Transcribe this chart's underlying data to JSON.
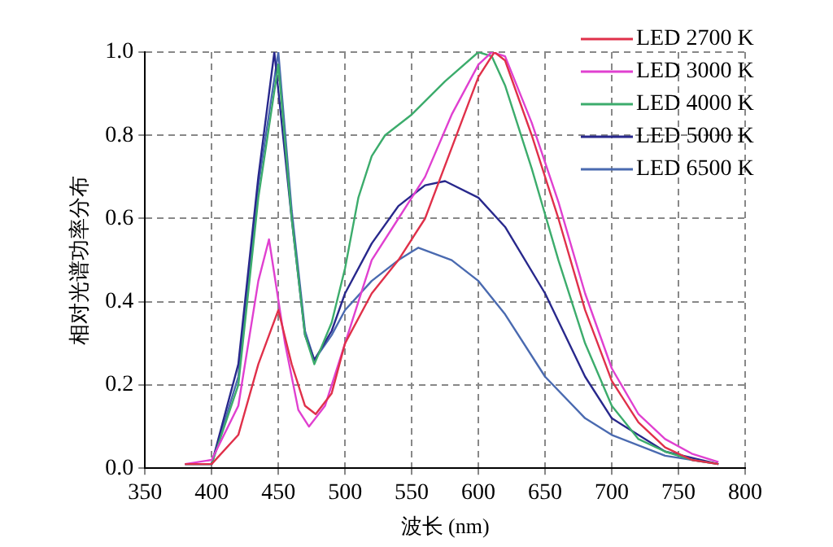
{
  "chart_data": {
    "type": "line",
    "xlabel": "波长 (nm)",
    "ylabel": "相对光谱功率分布",
    "xlim": [
      350,
      800
    ],
    "xticks": [
      350,
      400,
      450,
      500,
      550,
      600,
      650,
      700,
      750,
      800
    ],
    "ylim": [
      0,
      1.0
    ],
    "yticks": [
      {
        "value": 0,
        "label": "0.0"
      },
      0.2,
      0.4,
      0.6,
      0.8,
      {
        "value": 1.0,
        "label": "1.0"
      }
    ],
    "grid": true,
    "line_style": "solid",
    "marker": "none",
    "legend": "top right",
    "series": [
      {
        "name": "LED 2700 K",
        "color": "#e0304a",
        "x": [
          380,
          400,
          420,
          435,
          450,
          460,
          470,
          478,
          490,
          500,
          520,
          540,
          560,
          580,
          600,
          612,
          620,
          640,
          660,
          680,
          700,
          720,
          740,
          760,
          780
        ],
        "values": [
          0.01,
          0.01,
          0.08,
          0.25,
          0.38,
          0.25,
          0.15,
          0.13,
          0.18,
          0.3,
          0.42,
          0.5,
          0.6,
          0.77,
          0.94,
          1.0,
          0.98,
          0.8,
          0.6,
          0.38,
          0.21,
          0.11,
          0.05,
          0.02,
          0.01
        ]
      },
      {
        "name": "LED 3000 K",
        "color": "#e040d0",
        "x": [
          380,
          400,
          420,
          435,
          443,
          455,
          465,
          473,
          485,
          500,
          520,
          540,
          560,
          580,
          600,
          610,
          620,
          640,
          660,
          680,
          700,
          720,
          740,
          760,
          780
        ],
        "values": [
          0.01,
          0.02,
          0.15,
          0.45,
          0.55,
          0.3,
          0.14,
          0.1,
          0.15,
          0.3,
          0.5,
          0.6,
          0.7,
          0.85,
          0.97,
          1.0,
          0.99,
          0.83,
          0.64,
          0.42,
          0.24,
          0.13,
          0.07,
          0.035,
          0.015
        ]
      },
      {
        "name": "LED 4000 K",
        "color": "#3cac6c",
        "x": [
          380,
          400,
          420,
          435,
          450,
          460,
          470,
          477,
          490,
          500,
          510,
          520,
          530,
          550,
          575,
          600,
          610,
          620,
          640,
          660,
          680,
          700,
          720,
          740,
          760,
          780
        ],
        "values": [
          0.01,
          0.01,
          0.2,
          0.65,
          0.97,
          0.6,
          0.32,
          0.25,
          0.35,
          0.48,
          0.65,
          0.75,
          0.8,
          0.85,
          0.93,
          1.0,
          0.99,
          0.92,
          0.72,
          0.5,
          0.3,
          0.15,
          0.07,
          0.04,
          0.02,
          0.01
        ]
      },
      {
        "name": "LED 5000 K",
        "color": "#28288c",
        "x": [
          380,
          400,
          420,
          435,
          447,
          460,
          470,
          477,
          490,
          500,
          520,
          540,
          560,
          575,
          600,
          620,
          650,
          680,
          700,
          740,
          780
        ],
        "values": [
          0.01,
          0.01,
          0.25,
          0.7,
          1.0,
          0.6,
          0.32,
          0.26,
          0.33,
          0.42,
          0.54,
          0.63,
          0.68,
          0.69,
          0.65,
          0.58,
          0.42,
          0.22,
          0.12,
          0.04,
          0.01
        ]
      },
      {
        "name": "LED 6500 K",
        "color": "#4a6ab0",
        "x": [
          380,
          400,
          420,
          435,
          450,
          460,
          470,
          477,
          490,
          500,
          520,
          540,
          555,
          580,
          600,
          620,
          650,
          680,
          700,
          740,
          780
        ],
        "values": [
          0.01,
          0.01,
          0.22,
          0.68,
          1.0,
          0.62,
          0.33,
          0.26,
          0.32,
          0.38,
          0.45,
          0.5,
          0.53,
          0.5,
          0.45,
          0.37,
          0.22,
          0.12,
          0.08,
          0.03,
          0.01
        ]
      }
    ]
  }
}
